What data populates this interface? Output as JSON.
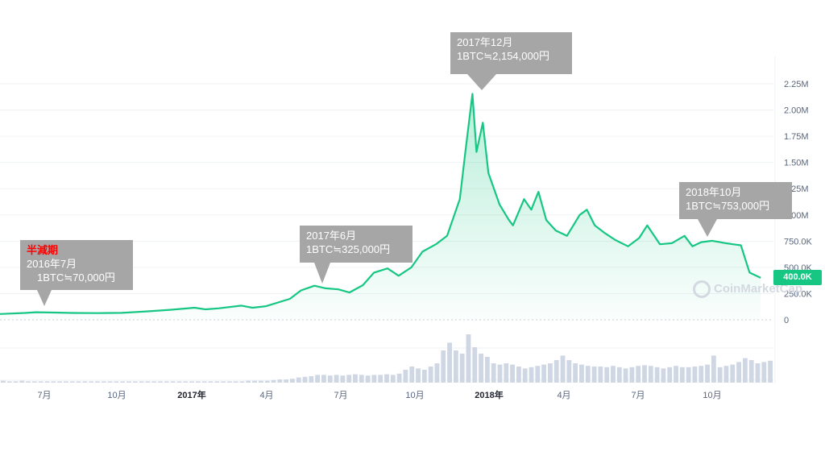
{
  "chart_data": {
    "type": "area",
    "y_ticks": [
      "2.25M",
      "2.00M",
      "1.75M",
      "1.50M",
      "1.25M",
      "1.00M",
      "750.0K",
      "500.0K",
      "250.0K",
      "0"
    ],
    "ylim": [
      0,
      2250000
    ],
    "x_ticks": [
      {
        "label": "7月",
        "bold": false
      },
      {
        "label": "10月",
        "bold": false
      },
      {
        "label": "2017年",
        "bold": true
      },
      {
        "label": "4月",
        "bold": false
      },
      {
        "label": "7月",
        "bold": false
      },
      {
        "label": "10月",
        "bold": false
      },
      {
        "label": "2018年",
        "bold": true
      },
      {
        "label": "4月",
        "bold": false
      },
      {
        "label": "7月",
        "bold": false
      },
      {
        "label": "10月",
        "bold": false
      }
    ],
    "series": [
      {
        "x": [
          "2016-05-01",
          "2016-06-01",
          "2016-06-15",
          "2016-07-01",
          "2016-07-15",
          "2016-08-01",
          "2016-09-01",
          "2016-10-01",
          "2016-11-01",
          "2016-12-01",
          "2017-01-01",
          "2017-01-15",
          "2017-02-01",
          "2017-03-01",
          "2017-03-15",
          "2017-04-01",
          "2017-05-01",
          "2017-05-15",
          "2017-06-01",
          "2017-06-15",
          "2017-07-01",
          "2017-07-15",
          "2017-08-01",
          "2017-08-15",
          "2017-09-01",
          "2017-09-15",
          "2017-10-01",
          "2017-10-15",
          "2017-11-01",
          "2017-11-15",
          "2017-12-01",
          "2017-12-08",
          "2017-12-17",
          "2017-12-22",
          "2017-12-30",
          "2018-01-06",
          "2018-01-20",
          "2018-02-01",
          "2018-02-06",
          "2018-02-20",
          "2018-03-01",
          "2018-03-10",
          "2018-03-20",
          "2018-04-01",
          "2018-04-15",
          "2018-05-01",
          "2018-05-10",
          "2018-05-20",
          "2018-06-01",
          "2018-06-15",
          "2018-07-01",
          "2018-07-15",
          "2018-07-25",
          "2018-08-10",
          "2018-08-25",
          "2018-09-10",
          "2018-09-20",
          "2018-10-01",
          "2018-10-15",
          "2018-11-01",
          "2018-11-10",
          "2018-11-20",
          "2018-12-01",
          "2018-12-15"
        ],
        "values": [
          55000,
          65000,
          72000,
          70000,
          68000,
          65000,
          64000,
          66000,
          80000,
          95000,
          115000,
          100000,
          110000,
          135000,
          115000,
          130000,
          200000,
          280000,
          325000,
          300000,
          290000,
          260000,
          330000,
          450000,
          490000,
          420000,
          500000,
          650000,
          720000,
          800000,
          1150000,
          1600000,
          2154000,
          1600000,
          1880000,
          1400000,
          1100000,
          950000,
          900000,
          1150000,
          1050000,
          1220000,
          950000,
          850000,
          800000,
          1000000,
          1050000,
          900000,
          830000,
          760000,
          700000,
          780000,
          900000,
          720000,
          730000,
          800000,
          700000,
          740000,
          753000,
          730000,
          720000,
          710000,
          450000,
          400000
        ]
      }
    ],
    "volume": [
      3,
      2,
      2,
      3,
      2,
      2,
      2,
      2,
      2,
      2,
      2,
      2,
      2,
      2,
      2,
      2,
      2,
      2,
      2,
      2,
      2,
      2,
      2,
      2,
      2,
      2,
      2,
      2,
      2,
      2,
      2,
      2,
      2,
      2,
      2,
      2,
      2,
      2,
      2,
      3,
      3,
      3,
      3,
      4,
      5,
      5,
      6,
      8,
      9,
      10,
      12,
      12,
      11,
      12,
      11,
      12,
      13,
      12,
      11,
      12,
      12,
      13,
      12,
      14,
      20,
      25,
      22,
      20,
      25,
      30,
      50,
      62,
      50,
      45,
      75,
      55,
      45,
      40,
      30,
      28,
      30,
      28,
      25,
      22,
      24,
      26,
      28,
      30,
      35,
      42,
      35,
      30,
      28,
      26,
      25,
      25,
      24,
      26,
      24,
      22,
      24,
      26,
      27,
      26,
      24,
      22,
      24,
      26,
      24,
      24,
      25,
      26,
      28,
      42,
      24,
      26,
      28,
      32,
      38,
      35,
      30,
      32,
      34
    ]
  },
  "annotations": [
    {
      "highlight": "半減期",
      "lines": [
        "2016年7月",
        "　1BTC≒70,000円"
      ]
    },
    {
      "lines": [
        "2017年6月",
        "1BTC≒325,000円"
      ]
    },
    {
      "lines": [
        "2017年12月",
        "1BTC≒2,154,000円"
      ]
    },
    {
      "lines": [
        "2018年10月",
        "1BTC≒753,000円"
      ]
    }
  ],
  "current_price": "400.0K",
  "watermark": "CoinMarketCap",
  "colors": {
    "line": "#16c784",
    "fill_top": "#16c784",
    "volume": "#cfd6e4",
    "grid": "#eff2f5",
    "callout": "#a6a6a6",
    "highlight": "#ff0000"
  }
}
